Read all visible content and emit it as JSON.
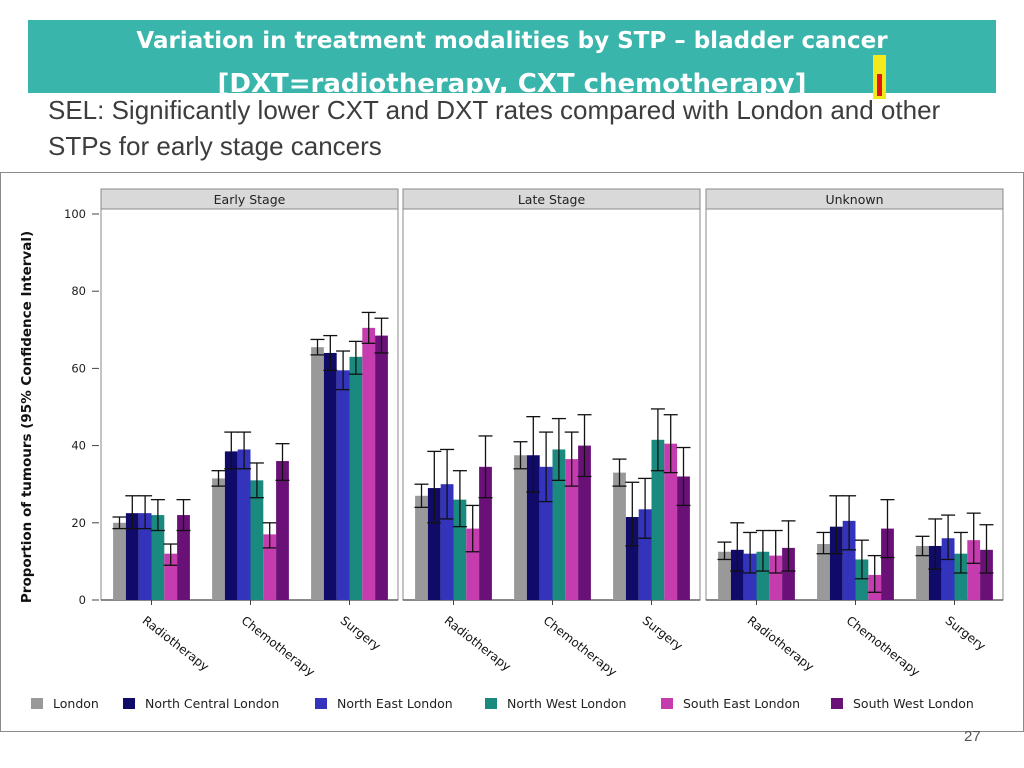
{
  "title": {
    "line1": "Variation in treatment modalities by STP – bladder cancer",
    "line2": "[DXT=radiotherapy, CXT chemotherapy]"
  },
  "subtitle": "SEL: Significantly lower CXT and DXT rates compared with London and other STPs for early stage cancers",
  "page_number": "27",
  "colors": {
    "banner": "#39b5ac",
    "London": "#999999",
    "North Central London": "#100b68",
    "North East London": "#3333bb",
    "North West London": "#1a8a7f",
    "South East London": "#c43cad",
    "South West London": "#6a1178"
  },
  "chart_data": {
    "type": "bar",
    "ylabel": "Proportion of tumours (95% Confidence Interval)",
    "ylim": [
      0,
      100
    ],
    "yticks": [
      0,
      20,
      40,
      60,
      80,
      100
    ],
    "panels": [
      "Early Stage",
      "Late Stage",
      "Unknown"
    ],
    "categories": [
      "Radiotherapy",
      "Chemotherapy",
      "Surgery"
    ],
    "series": [
      {
        "name": "London",
        "values": [
          [
            20,
            31.5,
            65.5
          ],
          [
            27,
            37.5,
            33
          ],
          [
            12.5,
            14.5,
            14
          ]
        ],
        "ci": [
          [
            [
              18.5,
              21.5
            ],
            [
              29.5,
              33.5
            ],
            [
              63.5,
              67.5
            ]
          ],
          [
            [
              24,
              30
            ],
            [
              34,
              41
            ],
            [
              29.5,
              36.5
            ]
          ],
          [
            [
              10.5,
              15
            ],
            [
              12,
              17.5
            ],
            [
              11.5,
              16.5
            ]
          ]
        ]
      },
      {
        "name": "North Central London",
        "values": [
          [
            22.5,
            38.5,
            64
          ],
          [
            29,
            37.5,
            21.5
          ],
          [
            13,
            19,
            14
          ]
        ],
        "ci": [
          [
            [
              18.5,
              27
            ],
            [
              34,
              43.5
            ],
            [
              59.5,
              68.5
            ]
          ],
          [
            [
              20,
              38.5
            ],
            [
              28,
              47.5
            ],
            [
              14,
              30.5
            ]
          ],
          [
            [
              7.5,
              20
            ],
            [
              12,
              27
            ],
            [
              8,
              21
            ]
          ]
        ]
      },
      {
        "name": "North East London",
        "values": [
          [
            22.5,
            39,
            59.5
          ],
          [
            30,
            34.5,
            23.5
          ],
          [
            12,
            20.5,
            16
          ]
        ],
        "ci": [
          [
            [
              18.5,
              27
            ],
            [
              34,
              43.5
            ],
            [
              54.5,
              64.5
            ]
          ],
          [
            [
              21,
              39
            ],
            [
              25.5,
              43.5
            ],
            [
              16,
              31.5
            ]
          ],
          [
            [
              7,
              17.5
            ],
            [
              13,
              27
            ],
            [
              10.5,
              22
            ]
          ]
        ]
      },
      {
        "name": "North West London",
        "values": [
          [
            22,
            31,
            63
          ],
          [
            26,
            39,
            41.5
          ],
          [
            12.5,
            10.5,
            12
          ]
        ],
        "ci": [
          [
            [
              18,
              26
            ],
            [
              26.5,
              35.5
            ],
            [
              58.5,
              67
            ]
          ],
          [
            [
              19,
              33.5
            ],
            [
              31,
              47
            ],
            [
              33.5,
              49.5
            ]
          ],
          [
            [
              7.5,
              18
            ],
            [
              5.5,
              15.5
            ],
            [
              7,
              17.5
            ]
          ]
        ]
      },
      {
        "name": "South East London",
        "values": [
          [
            12,
            17,
            70.5
          ],
          [
            18.5,
            36.5,
            40.5
          ],
          [
            11.5,
            6.5,
            15.5
          ]
        ],
        "ci": [
          [
            [
              9,
              14.5
            ],
            [
              13.5,
              20
            ],
            [
              66.5,
              74.5
            ]
          ],
          [
            [
              12.5,
              24.5
            ],
            [
              29.5,
              43.5
            ],
            [
              33,
              48
            ]
          ],
          [
            [
              7,
              18
            ],
            [
              2,
              11.5
            ],
            [
              9.5,
              22.5
            ]
          ]
        ]
      },
      {
        "name": "South West London",
        "values": [
          [
            22,
            36,
            68.5
          ],
          [
            34.5,
            40,
            32
          ],
          [
            13.5,
            18.5,
            13
          ]
        ],
        "ci": [
          [
            [
              18,
              26
            ],
            [
              31,
              40.5
            ],
            [
              64,
              73
            ]
          ],
          [
            [
              26.5,
              42.5
            ],
            [
              32,
              48
            ],
            [
              24.5,
              39.5
            ]
          ],
          [
            [
              7.5,
              20.5
            ],
            [
              11,
              26
            ],
            [
              7,
              19.5
            ]
          ]
        ]
      }
    ]
  }
}
